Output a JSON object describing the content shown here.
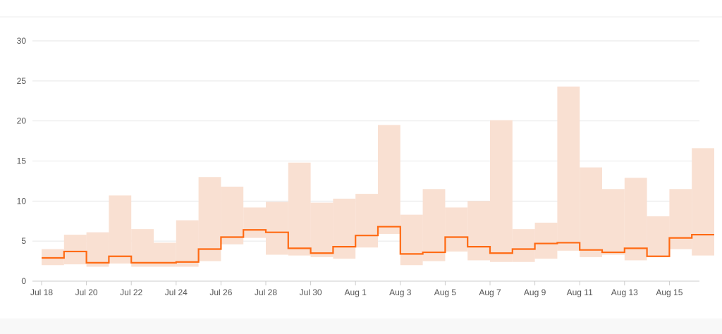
{
  "chart_data": {
    "type": "area",
    "title": "",
    "xlabel": "",
    "ylabel": "",
    "ylim": [
      0,
      30
    ],
    "yticks": [
      0,
      5,
      10,
      15,
      20,
      25,
      30
    ],
    "x_tick_labels": [
      "Jul 18",
      "Jul 20",
      "Jul 22",
      "Jul 24",
      "Jul 26",
      "Jul 28",
      "Jul 30",
      "Aug 1",
      "Aug 3",
      "Aug 5",
      "Aug 7",
      "Aug 9",
      "Aug 11",
      "Aug 13",
      "Aug 15"
    ],
    "x": [
      "Jul 18",
      "Jul 19",
      "Jul 20",
      "Jul 21",
      "Jul 22",
      "Jul 23",
      "Jul 24",
      "Jul 25",
      "Jul 26",
      "Jul 27",
      "Jul 28",
      "Jul 29",
      "Jul 30",
      "Jul 31",
      "Aug 1",
      "Aug 2",
      "Aug 3",
      "Aug 4",
      "Aug 5",
      "Aug 6",
      "Aug 7",
      "Aug 8",
      "Aug 9",
      "Aug 10",
      "Aug 11",
      "Aug 12",
      "Aug 13",
      "Aug 14",
      "Aug 15",
      "Aug 16"
    ],
    "step": true,
    "grid": true,
    "legend": "none",
    "series": [
      {
        "role": "line",
        "color": "#ff6a13",
        "values": [
          2.9,
          3.7,
          2.3,
          3.1,
          2.3,
          2.3,
          2.4,
          4.0,
          5.5,
          6.4,
          6.1,
          4.1,
          3.5,
          4.3,
          5.7,
          6.8,
          3.4,
          3.6,
          5.5,
          4.3,
          3.5,
          4.0,
          4.7,
          4.8,
          3.9,
          3.6,
          4.1,
          3.1,
          5.4,
          5.8
        ]
      },
      {
        "role": "band",
        "color": "#f9e0d2",
        "upper": [
          4.0,
          5.8,
          6.1,
          10.7,
          6.5,
          4.8,
          7.6,
          13.0,
          11.8,
          9.2,
          9.9,
          14.8,
          9.8,
          10.3,
          10.9,
          19.5,
          8.3,
          11.5,
          9.2,
          10.0,
          20.1,
          6.5,
          7.3,
          24.3,
          14.2,
          11.5,
          12.9,
          8.1,
          11.5,
          16.6
        ],
        "lower": [
          2.0,
          2.1,
          1.8,
          2.2,
          1.8,
          1.8,
          1.8,
          2.5,
          4.6,
          5.4,
          3.3,
          3.2,
          3.0,
          2.8,
          4.2,
          5.9,
          2.0,
          2.5,
          3.7,
          2.6,
          2.4,
          2.4,
          2.8,
          3.8,
          3.0,
          3.3,
          2.6,
          3.1,
          4.0,
          3.2
        ]
      }
    ]
  }
}
